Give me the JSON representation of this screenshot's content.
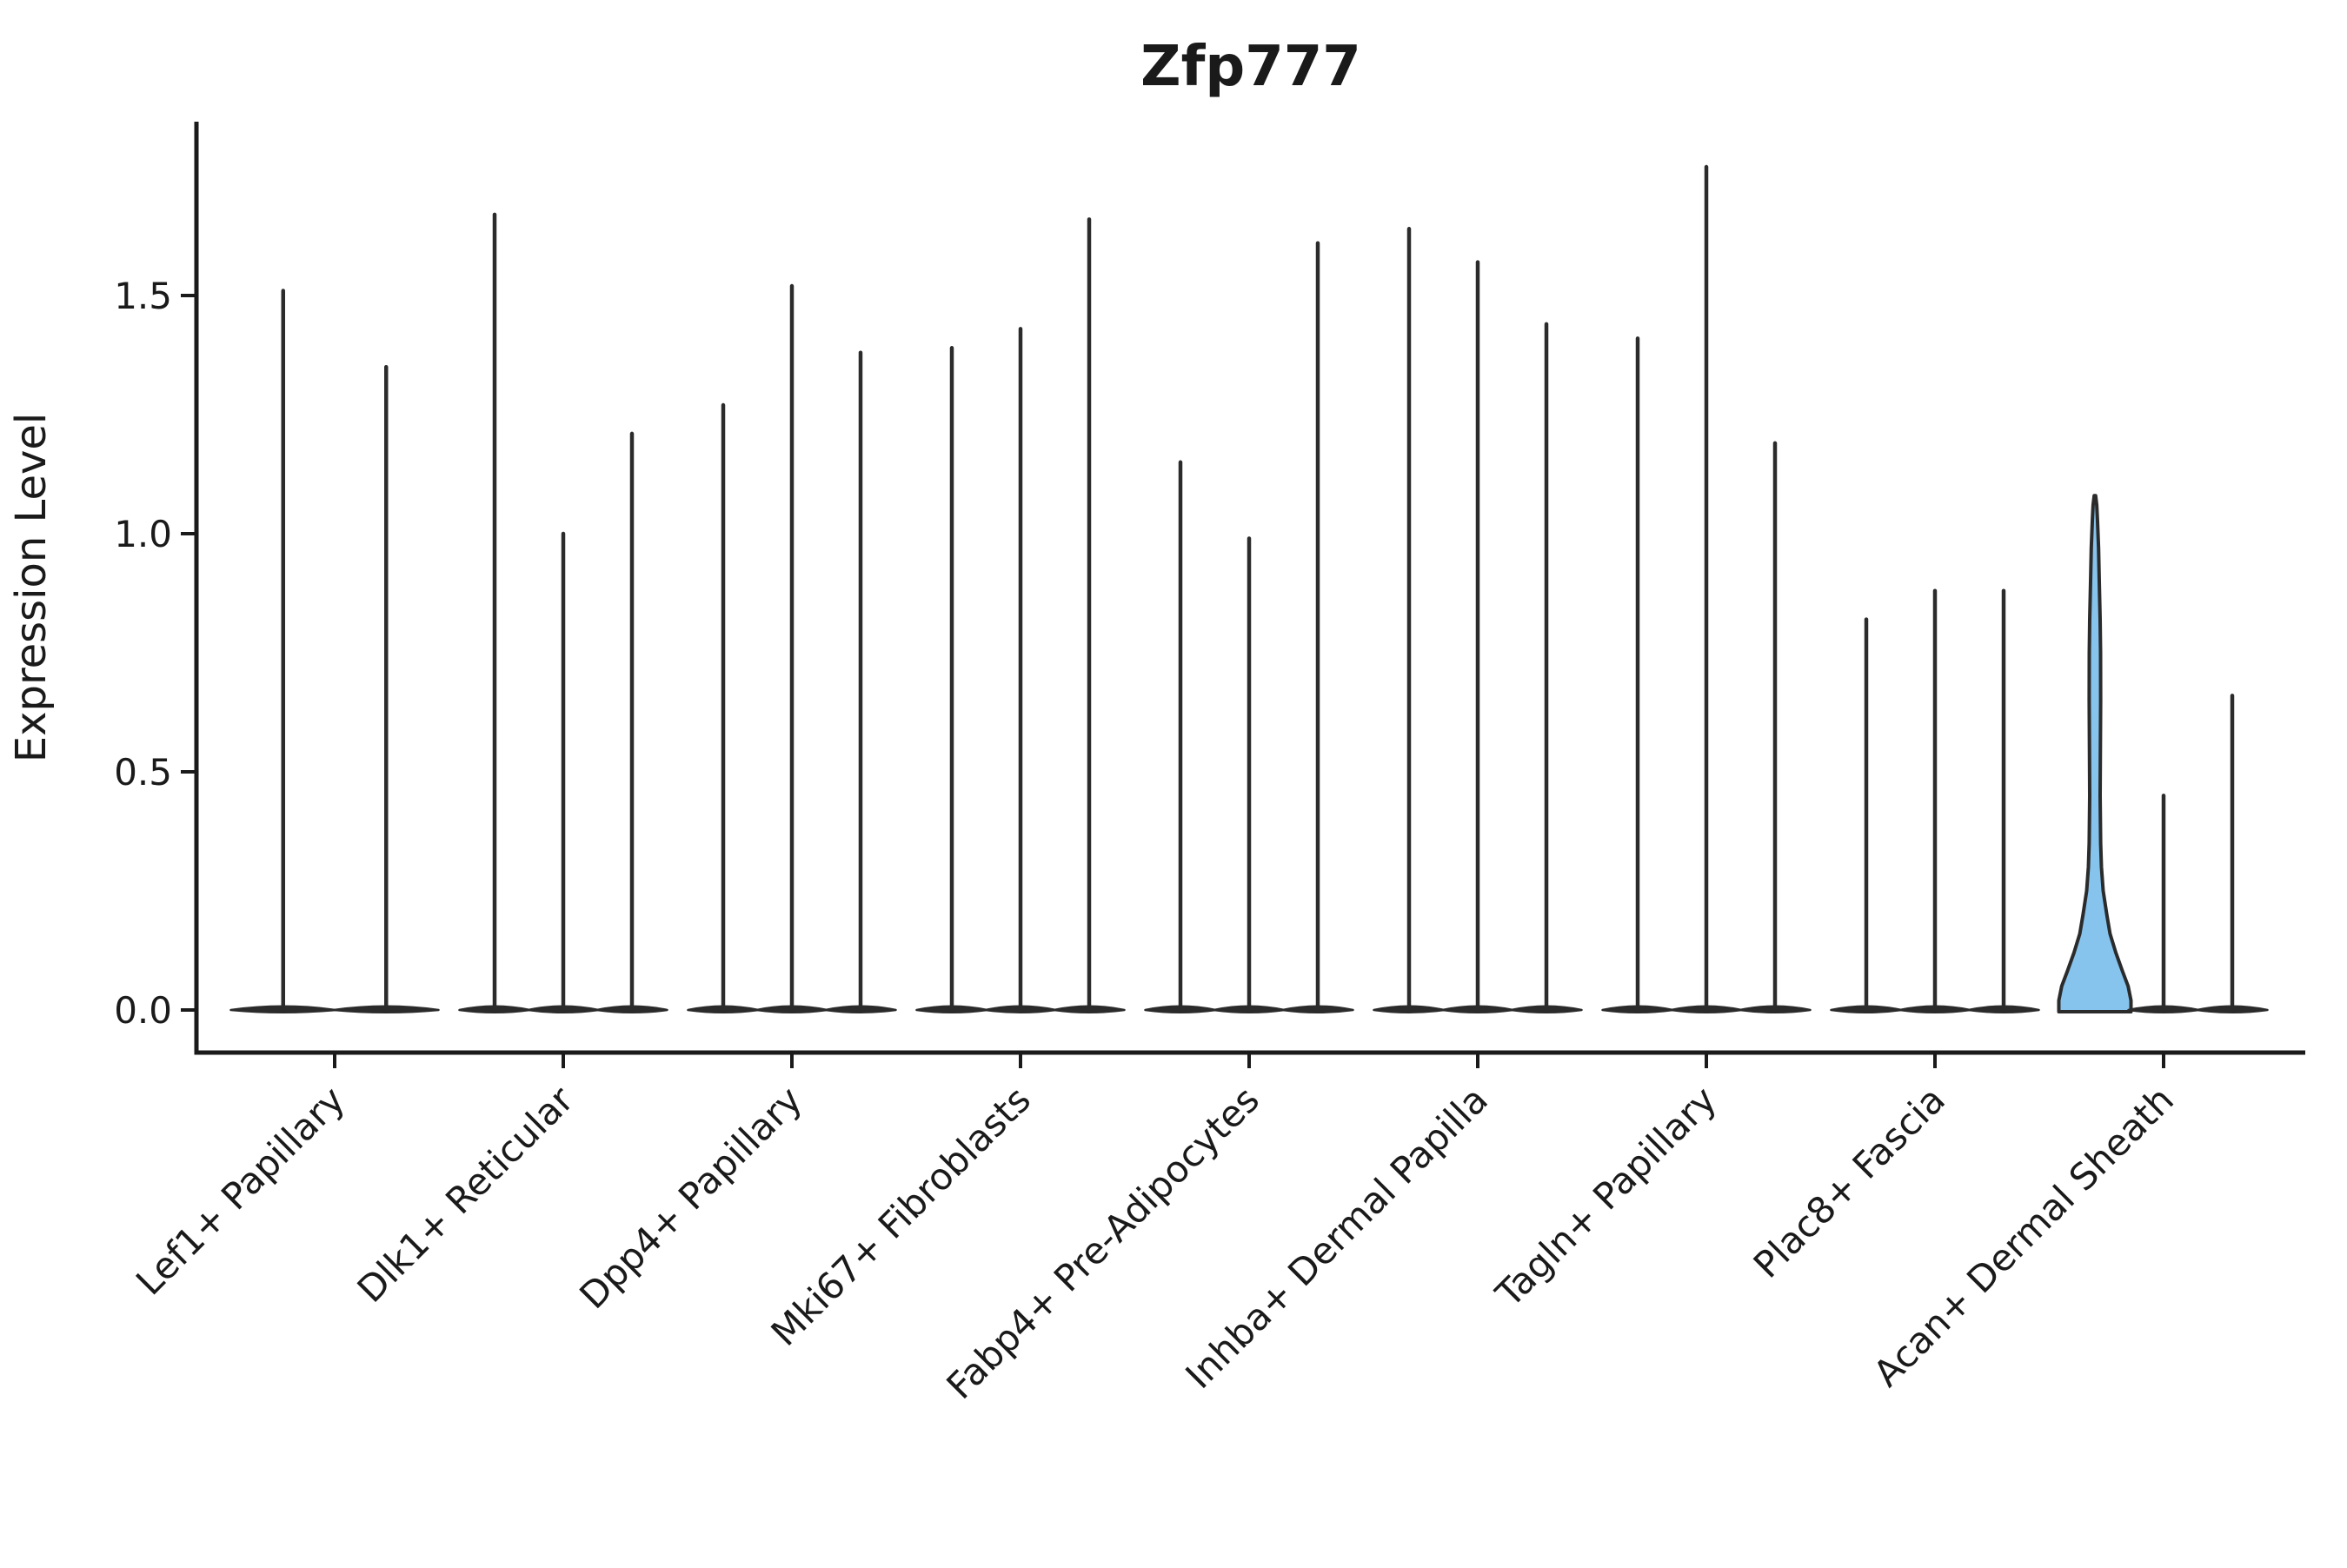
{
  "title": "Zfp777",
  "y_axis": {
    "label": "Expression Level",
    "ticks": [
      {
        "label": "0.0",
        "value": 0.0
      },
      {
        "label": "0.5",
        "value": 0.5
      },
      {
        "label": "1.0",
        "value": 1.0
      },
      {
        "label": "1.5",
        "value": 1.5
      }
    ]
  },
  "colors": {
    "outline": "#2b2b2b",
    "highlight_fill": "#87C4ED",
    "axis": "#1a1a1a",
    "background": "#ffffff",
    "text": "#1a1a1a"
  },
  "chart_data": {
    "type": "violin",
    "title": "Zfp777",
    "xlabel": "",
    "ylabel": "Expression Level",
    "ylim": [
      -0.09,
      1.87
    ],
    "grid": false,
    "legend": "none",
    "categories": [
      "Lef1+ Papillary",
      "Dlk1+ Reticular",
      "Dpp4+ Papillary",
      "Mki67+ Fibroblasts",
      "Fabp4+ Pre-Adipocytes",
      "Inhba+ Dermal Papilla",
      "Tagln+ Papillary",
      "Plac8+ Fascia",
      "Acan+ Dermal Sheath"
    ],
    "description": "Grouped violin plot; most violins collapse to a spike at 0 with a flat base; one violin in Acan+ Dermal Sheath is filled blue with visible density",
    "groups": [
      {
        "category": "Lef1+ Papillary",
        "violins": [
          {
            "max": 1.51
          },
          {
            "max": 1.35
          }
        ]
      },
      {
        "category": "Dlk1+ Reticular",
        "violins": [
          {
            "max": 1.67
          },
          {
            "max": 1.0
          },
          {
            "max": 1.21
          }
        ]
      },
      {
        "category": "Dpp4+ Papillary",
        "violins": [
          {
            "max": 1.27
          },
          {
            "max": 1.52
          },
          {
            "max": 1.38
          }
        ]
      },
      {
        "category": "Mki67+ Fibroblasts",
        "violins": [
          {
            "max": 1.39
          },
          {
            "max": 1.43
          },
          {
            "max": 1.66
          }
        ]
      },
      {
        "category": "Fabp4+ Pre-Adipocytes",
        "violins": [
          {
            "max": 1.15
          },
          {
            "max": 0.99
          },
          {
            "max": 1.61
          }
        ]
      },
      {
        "category": "Inhba+ Dermal Papilla",
        "violins": [
          {
            "max": 1.64
          },
          {
            "max": 1.57
          },
          {
            "max": 1.44
          }
        ]
      },
      {
        "category": "Tagln+ Papillary",
        "violins": [
          {
            "max": 1.41
          },
          {
            "max": 1.77
          },
          {
            "max": 1.19
          }
        ]
      },
      {
        "category": "Plac8+ Fascia",
        "violins": [
          {
            "max": 0.82
          },
          {
            "max": 0.88
          },
          {
            "max": 0.88
          }
        ]
      },
      {
        "category": "Acan+ Dermal Sheath",
        "violins": [
          {
            "max": 1.08,
            "highlighted": true,
            "fill": "#87C4ED",
            "profile": [
              [
                0,
                1
              ],
              [
                0.02,
                1
              ],
              [
                0.05,
                0.92
              ],
              [
                0.08,
                0.77
              ],
              [
                0.12,
                0.58
              ],
              [
                0.16,
                0.42
              ],
              [
                0.2,
                0.33
              ],
              [
                0.25,
                0.23
              ],
              [
                0.3,
                0.18
              ],
              [
                0.35,
                0.16
              ],
              [
                0.45,
                0.145
              ],
              [
                0.55,
                0.152
              ],
              [
                0.65,
                0.16
              ],
              [
                0.75,
                0.157
              ],
              [
                0.82,
                0.145
              ],
              [
                0.9,
                0.12
              ],
              [
                0.97,
                0.1
              ],
              [
                1.03,
                0.07
              ],
              [
                1.06,
                0.05
              ],
              [
                1.08,
                0.02
              ]
            ]
          },
          {
            "max": 0.45
          },
          {
            "max": 0.66
          }
        ]
      }
    ]
  }
}
